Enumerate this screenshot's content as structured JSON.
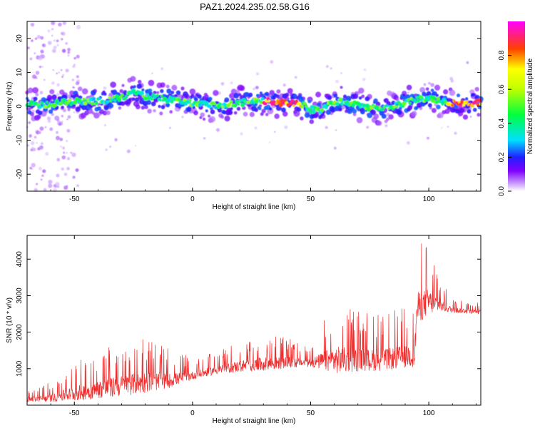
{
  "title": "PAZ1.2024.235.02.58.G16",
  "colors": {
    "snr_line": "#ee2c2c",
    "axis": "#000000"
  },
  "chart_data": [
    {
      "id": "spectrogram",
      "type": "heatmap",
      "xlabel": "Height of straight line (km)",
      "ylabel": "Frequency (Hz)",
      "xlim": [
        -70,
        122
      ],
      "ylim": [
        -25,
        25
      ],
      "xticks": [
        -50,
        0,
        50,
        100
      ],
      "yticks": [
        20,
        10,
        0,
        -10,
        -20
      ],
      "grid": false,
      "colorbar": {
        "label": "Normalized spectral amplitude",
        "range": [
          0,
          1
        ],
        "ticks": [
          0.0,
          0.2,
          0.4,
          0.6,
          0.8
        ],
        "colormap": "rainbow (magenta-red at top, purple-white at bottom)"
      },
      "ridge_frequency_hz": {
        "x": [
          -70,
          -60,
          -50,
          -40,
          -30,
          -25,
          -20,
          -10,
          0,
          10,
          20,
          30,
          40,
          45,
          48,
          50,
          55,
          60,
          65,
          70,
          80,
          90,
          95,
          100,
          105,
          110,
          122
        ],
        "y": [
          0.5,
          0.5,
          1.5,
          1.5,
          2.5,
          4,
          3,
          2,
          1,
          0,
          1,
          1.5,
          1,
          0.5,
          0,
          -1,
          -1,
          1.5,
          1,
          0.5,
          -1,
          1,
          2,
          2.5,
          1.5,
          1,
          1
        ]
      }
    },
    {
      "id": "snr",
      "type": "line",
      "xlabel": "Height of straight line (km)",
      "ylabel": "SNR (10 * v/v)",
      "xlim": [
        -70,
        122
      ],
      "ylim": [
        0,
        4650
      ],
      "xticks": [
        -50,
        0,
        50,
        100
      ],
      "yticks": [
        1000,
        2000,
        3000,
        4000
      ],
      "grid": false,
      "series": [
        {
          "envelope_x": [
            -70,
            -60,
            -50,
            -40,
            -30,
            -20,
            -10,
            0,
            10,
            20,
            30,
            40,
            50,
            60,
            70,
            80,
            90,
            94,
            95,
            100,
            105,
            110,
            122
          ],
          "baseline": [
            150,
            180,
            300,
            400,
            500,
            600,
            650,
            800,
            950,
            1050,
            1100,
            1150,
            1150,
            1200,
            1200,
            1200,
            1300,
            1350,
            2600,
            2800,
            2700,
            2600,
            2550
          ],
          "peak_amplitude": [
            300,
            450,
            900,
            1100,
            1300,
            1300,
            900,
            500,
            500,
            700,
            850,
            700,
            500,
            1700,
            1400,
            1300,
            1400,
            1500,
            2000,
            1600,
            700,
            350,
            250
          ]
        }
      ]
    }
  ]
}
